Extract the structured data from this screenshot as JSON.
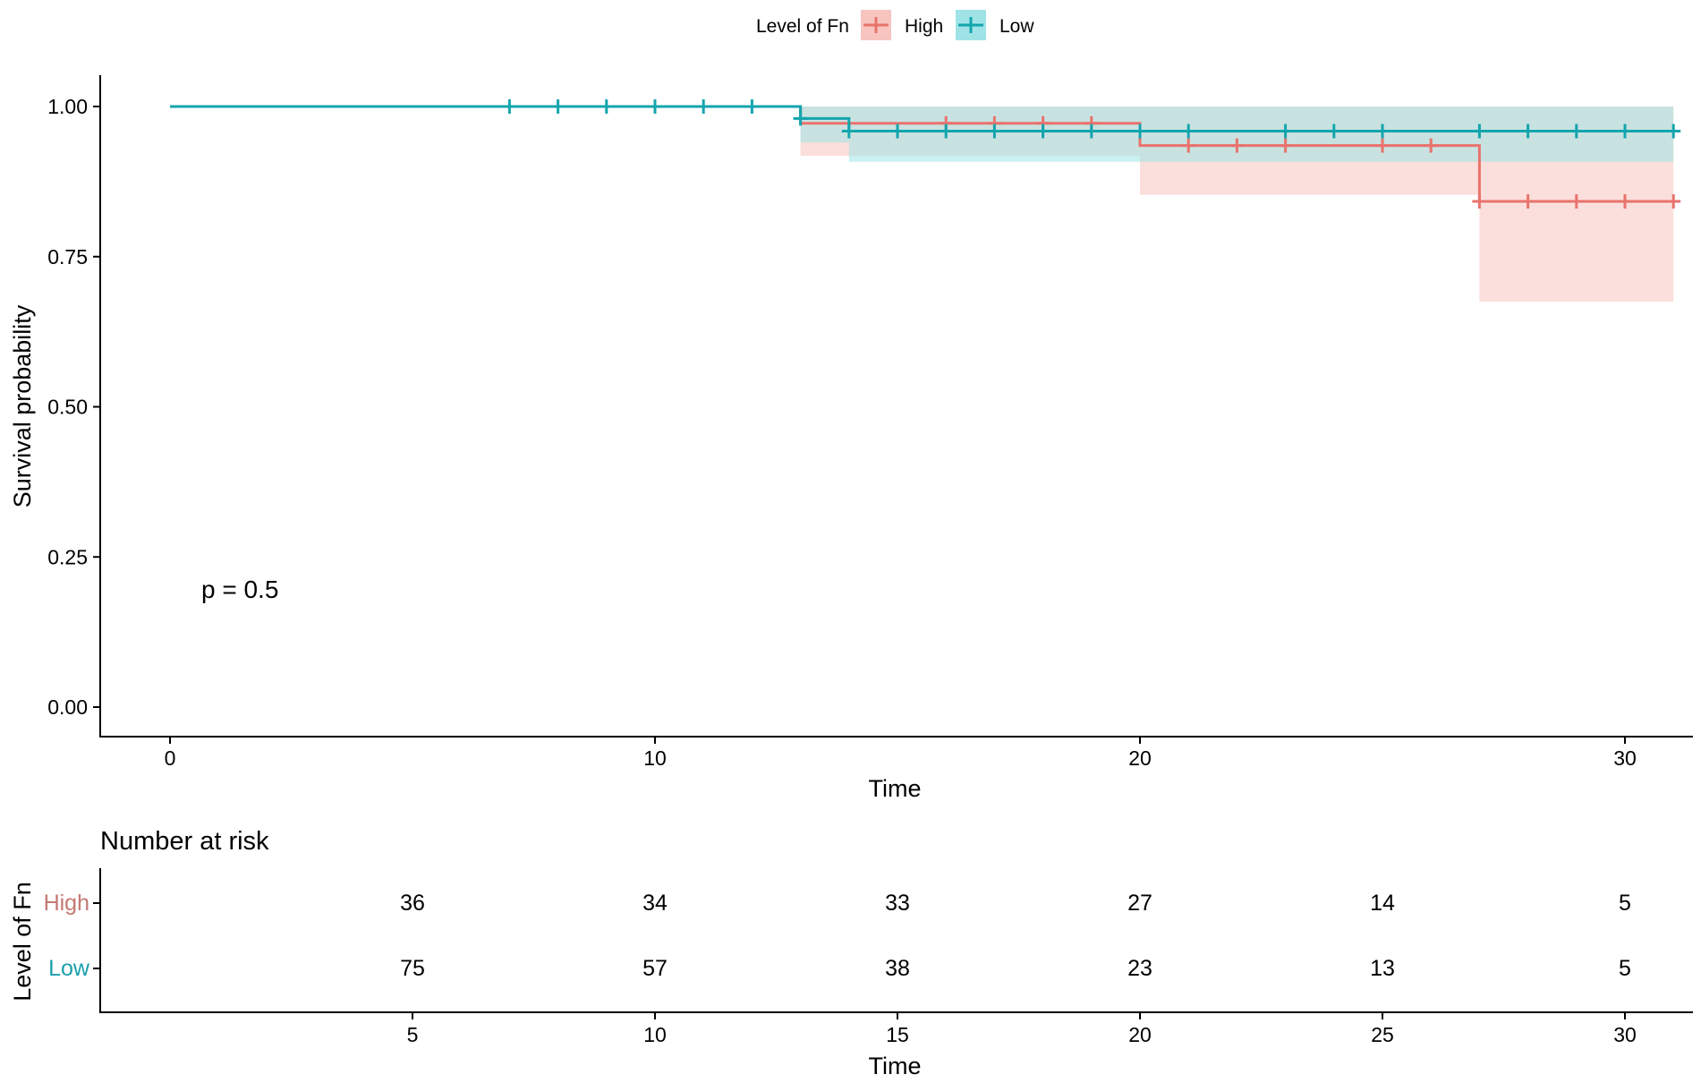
{
  "chart_data": [
    {
      "type": "line",
      "subtype": "kaplan-meier",
      "ylabel": "Survival probability",
      "xlabel": "Time",
      "xlim": [
        0,
        31
      ],
      "ylim": [
        0,
        1
      ],
      "x_ticks": [
        0,
        10,
        20,
        30
      ],
      "y_ticks": [
        0,
        0.25,
        0.5,
        0.75,
        1.0
      ],
      "y_tick_labels": [
        "0.00",
        "0.25",
        "0.50",
        "0.75",
        "1.00"
      ],
      "annotation": "p = 0.5",
      "legend": {
        "title": "Level of Fn",
        "placement": "top",
        "items": [
          {
            "label": "High",
            "color": "#e8736c"
          },
          {
            "label": "Low",
            "color": "#13a5ad"
          }
        ]
      },
      "grid": false,
      "series": [
        {
          "name": "High",
          "color": "#e8736c",
          "band_color": "#f8c4c0",
          "steps": [
            {
              "x": 0,
              "y": 1.0,
              "lower": 1.0,
              "upper": 1.0
            },
            {
              "x": 13,
              "y": 0.972,
              "lower": 0.918,
              "upper": 1.0
            },
            {
              "x": 20,
              "y": 0.935,
              "lower": 0.853,
              "upper": 1.0
            },
            {
              "x": 27,
              "y": 0.842,
              "lower": 0.675,
              "upper": 1.0
            }
          ],
          "end": 31,
          "censor_x": [
            16,
            17,
            18,
            19,
            21,
            22,
            23,
            25,
            26,
            27,
            28,
            29,
            30,
            31
          ]
        },
        {
          "name": "Low",
          "color": "#13a5ad",
          "band_color": "#9fe3e6",
          "steps": [
            {
              "x": 0,
              "y": 1.0,
              "lower": 1.0,
              "upper": 1.0
            },
            {
              "x": 13,
              "y": 0.98,
              "lower": 0.94,
              "upper": 1.0
            },
            {
              "x": 14,
              "y": 0.959,
              "lower": 0.908,
              "upper": 1.0
            }
          ],
          "end": 31,
          "censor_x": [
            7,
            8,
            9,
            10,
            11,
            12,
            13,
            14,
            15,
            16,
            17,
            18,
            19,
            20,
            21,
            23,
            24,
            25,
            27,
            28,
            29,
            30,
            31
          ]
        }
      ]
    },
    {
      "type": "table",
      "title": "Number at risk",
      "xlabel": "Time",
      "ylabel": "Level of Fn",
      "x_ticks": [
        5,
        10,
        15,
        20,
        25,
        30
      ],
      "xlim": [
        0,
        31
      ],
      "rows": [
        {
          "name": "High",
          "color": "#c47872",
          "values": [
            36,
            34,
            33,
            27,
            14,
            5
          ]
        },
        {
          "name": "Low",
          "color": "#1aa0aa",
          "values": [
            75,
            57,
            38,
            23,
            13,
            5
          ]
        }
      ]
    }
  ]
}
